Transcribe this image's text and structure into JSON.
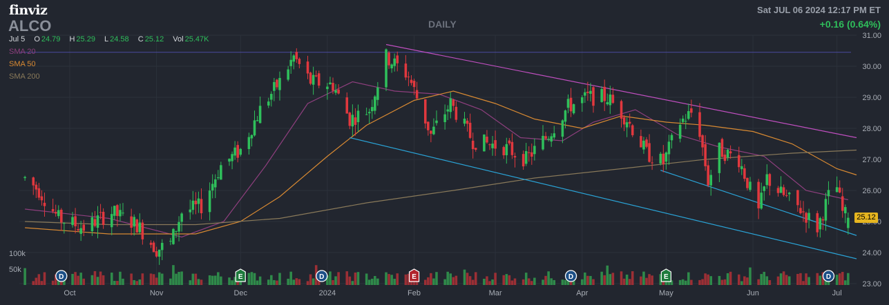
{
  "header": {
    "logo": "finviz",
    "ticker": "ALCO",
    "timeframe": "DAILY",
    "datetime": "Sat JUL 06 2024 12:17 PM ET",
    "change": "+0.16 (0.64%)"
  },
  "ohlc": {
    "date": "Jul 5",
    "open_label": "O",
    "open": "24.79",
    "high_label": "H",
    "high": "25.29",
    "low_label": "L",
    "low": "24.58",
    "close_label": "C",
    "close": "25.12",
    "vol_label": "Vol",
    "vol": "25.47K"
  },
  "legend": [
    {
      "name": "SMA 20",
      "color": "#8e3f7e"
    },
    {
      "name": "SMA 50",
      "color": "#d98a32"
    },
    {
      "name": "SMA 200",
      "color": "#8a7a5a"
    }
  ],
  "colors": {
    "up": "#2fbf5b",
    "down": "#e0383e",
    "background": "#22262f",
    "grid": "#2c313b"
  },
  "chart_data": {
    "type": "candlestick",
    "ylim": [
      23.0,
      31.0
    ],
    "y_ticks": [
      "31.00",
      "30.00",
      "29.00",
      "28.00",
      "27.00",
      "26.00",
      "25.00",
      "24.00",
      "23.00"
    ],
    "x_labels": [
      "Oct",
      "Nov",
      "Dec",
      "2024",
      "Feb",
      "Mar",
      "Apr",
      "May",
      "Jun",
      "Jul"
    ],
    "volume_labels": [
      "100k",
      "50k"
    ],
    "last_price": "25.12",
    "resistance_level": 30.45,
    "trendlines": [
      {
        "name": "upper",
        "color": "#c04fc0",
        "from": [
          "Jan 22",
          30.7
        ],
        "to": [
          "Jul 8",
          27.7
        ]
      },
      {
        "name": "lower",
        "color": "#2aa3d6",
        "from": [
          "Jan 9",
          27.7
        ],
        "to": [
          "Jul 8",
          23.8
        ]
      },
      {
        "name": "lower-2",
        "color": "#2aa3d6",
        "from": [
          "Apr 29",
          26.65
        ],
        "to": [
          "Jul 8",
          24.55
        ]
      }
    ],
    "events": [
      {
        "label": "D",
        "date": "Sep 28",
        "type": "dividend"
      },
      {
        "label": "E",
        "date": "Dec 1",
        "type": "earnings"
      },
      {
        "label": "D",
        "date": "Dec 30",
        "type": "dividend"
      },
      {
        "label": "E",
        "date": "Feb 1",
        "type": "earnings"
      },
      {
        "label": "D",
        "date": "Mar 28",
        "type": "dividend"
      },
      {
        "label": "E",
        "date": "May 1",
        "type": "earnings"
      },
      {
        "label": "D",
        "date": "Jun 28",
        "type": "dividend"
      }
    ],
    "anchors": [
      [
        "Sep 15",
        26.4
      ],
      [
        "Sep 20",
        26.0
      ],
      [
        "Sep 27",
        25.1
      ],
      [
        "Oct 6",
        24.8
      ],
      [
        "Oct 16",
        25.3
      ],
      [
        "Oct 25",
        24.9
      ],
      [
        "Nov 1",
        24.1
      ],
      [
        "Nov 6",
        24.3
      ],
      [
        "Nov 10",
        25.3
      ],
      [
        "Nov 17",
        25.5
      ],
      [
        "Nov 24",
        26.8
      ],
      [
        "Dec 1",
        27.3
      ],
      [
        "Dec 8",
        28.6
      ],
      [
        "Dec 15",
        29.5
      ],
      [
        "Dec 20",
        30.3
      ],
      [
        "Dec 26",
        29.5
      ],
      [
        "Jan 3",
        29.4
      ],
      [
        "Jan 9",
        28.3
      ],
      [
        "Jan 16",
        28.6
      ],
      [
        "Jan 22",
        30.3
      ],
      [
        "Jan 30",
        29.7
      ],
      [
        "Feb 7",
        27.8
      ],
      [
        "Feb 14",
        28.8
      ],
      [
        "Feb 22",
        27.6
      ],
      [
        "Mar 4",
        27.4
      ],
      [
        "Mar 12",
        27.0
      ],
      [
        "Mar 20",
        27.8
      ],
      [
        "Mar 27",
        28.7
      ],
      [
        "Apr 3",
        29.0
      ],
      [
        "Apr 10",
        29.0
      ],
      [
        "Apr 17",
        28.3
      ],
      [
        "Apr 24",
        27.2
      ],
      [
        "Apr 30",
        26.9
      ],
      [
        "May 6",
        28.2
      ],
      [
        "May 10",
        28.5
      ],
      [
        "May 13",
        27.9
      ],
      [
        "May 16",
        26.3
      ],
      [
        "May 20",
        27.3
      ],
      [
        "May 27",
        27.0
      ],
      [
        "Jun 3",
        25.3
      ],
      [
        "Jun 6",
        26.4
      ],
      [
        "Jun 11",
        25.9
      ],
      [
        "Jun 18",
        25.4
      ],
      [
        "Jun 24",
        24.8
      ],
      [
        "Jun 28",
        25.8
      ],
      [
        "Jul 1",
        26.1
      ],
      [
        "Jul 3",
        25.3
      ],
      [
        "Jul 5",
        25.12
      ]
    ],
    "volume_ylim": [
      0,
      120000
    ],
    "sma": {
      "SMA 20": [
        [
          "Sep 15",
          25.4
        ],
        [
          "Oct 15",
          25.1
        ],
        [
          "Nov 10",
          24.5
        ],
        [
          "Nov 25",
          25.0
        ],
        [
          "Dec 10",
          26.8
        ],
        [
          "Dec 25",
          28.8
        ],
        [
          "Jan 10",
          29.5
        ],
        [
          "Jan 25",
          29.2
        ],
        [
          "Feb 10",
          29.1
        ],
        [
          "Feb 25",
          28.6
        ],
        [
          "Mar 10",
          27.7
        ],
        [
          "Mar 25",
          27.6
        ],
        [
          "Apr 5",
          28.2
        ],
        [
          "Apr 20",
          28.6
        ],
        [
          "May 5",
          27.8
        ],
        [
          "May 20",
          27.4
        ],
        [
          "Jun 5",
          27.1
        ],
        [
          "Jun 20",
          26.0
        ],
        [
          "Jul 5",
          25.7
        ]
      ],
      "SMA 50": [
        [
          "Sep 15",
          24.8
        ],
        [
          "Oct 15",
          24.6
        ],
        [
          "Nov 15",
          24.6
        ],
        [
          "Dec 1",
          25.0
        ],
        [
          "Dec 15",
          25.8
        ],
        [
          "Jan 1",
          27.1
        ],
        [
          "Jan 15",
          28.1
        ],
        [
          "Feb 1",
          28.9
        ],
        [
          "Feb 15",
          29.2
        ],
        [
          "Mar 1",
          28.8
        ],
        [
          "Mar 15",
          28.3
        ],
        [
          "Apr 1",
          28.0
        ],
        [
          "Apr 15",
          28.4
        ],
        [
          "May 1",
          28.2
        ],
        [
          "May 15",
          28.1
        ],
        [
          "Jun 1",
          27.9
        ],
        [
          "Jun 15",
          27.5
        ],
        [
          "Jul 1",
          26.7
        ],
        [
          "Jul 8",
          26.5
        ]
      ],
      "SMA 200": [
        [
          "Sep 15",
          25.0
        ],
        [
          "Oct 15",
          24.9
        ],
        [
          "Nov 15",
          24.9
        ],
        [
          "Dec 15",
          25.1
        ],
        [
          "Jan 15",
          25.6
        ],
        [
          "Feb 15",
          26.0
        ],
        [
          "Mar 15",
          26.4
        ],
        [
          "Apr 15",
          26.7
        ],
        [
          "May 15",
          27.0
        ],
        [
          "Jun 15",
          27.2
        ],
        [
          "Jul 8",
          27.3
        ]
      ]
    }
  }
}
